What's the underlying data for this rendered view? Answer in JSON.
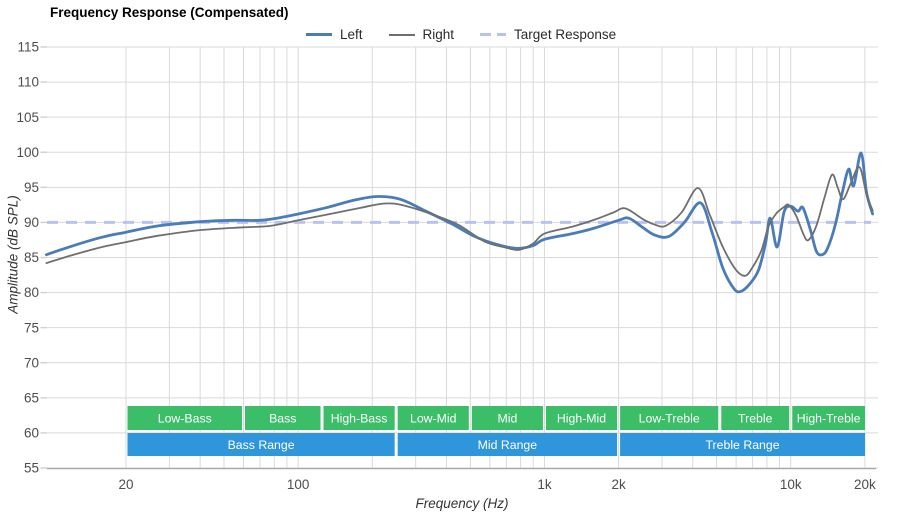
{
  "title": "Frequency Response (Compensated)",
  "legend": {
    "items": [
      {
        "label": "Left",
        "style": "solid",
        "color": "#4a7cba",
        "thickness": 3
      },
      {
        "label": "Right",
        "style": "solid",
        "color": "#6f6f6f",
        "thickness": 2
      },
      {
        "label": "Target Response",
        "style": "dashed",
        "color": "#b9c2f0",
        "thickness": 3
      }
    ]
  },
  "colors": {
    "left": "#4a7cba",
    "right": "#6f6f6f",
    "target": "#b9c2f0",
    "band_green": "#3cbd68",
    "band_blue": "#2f96db",
    "grid": "#d9d9d9",
    "axis": "#a9a9a9",
    "tick_text": "#4d4d4d",
    "band_text": "#ffffff"
  },
  "chart_data": {
    "type": "line",
    "title": "Frequency Response (Compensated)",
    "xlabel": "Frequency (Hz)",
    "ylabel": "Amplitude (dB SPL)",
    "x_scale": "log",
    "xlim_hz": [
      9.5,
      21500
    ],
    "ylim_db": [
      55,
      115
    ],
    "grid": true,
    "legend_position": "top",
    "target_db": 90,
    "y_ticks": [
      55,
      60,
      65,
      70,
      75,
      80,
      85,
      90,
      95,
      100,
      105,
      110,
      115
    ],
    "x_ticks": [
      {
        "f": 20,
        "label": "20"
      },
      {
        "f": 100,
        "label": "100"
      },
      {
        "f": 1000,
        "label": "1k"
      },
      {
        "f": 2000,
        "label": "2k"
      },
      {
        "f": 10000,
        "label": "10k"
      },
      {
        "f": 20000,
        "label": "20k"
      }
    ],
    "x_gridlines_hz": [
      20,
      30,
      40,
      50,
      60,
      70,
      80,
      90,
      100,
      200,
      300,
      400,
      500,
      600,
      700,
      800,
      900,
      1000,
      2000,
      3000,
      4000,
      5000,
      6000,
      7000,
      8000,
      9000,
      10000,
      20000
    ],
    "series": [
      {
        "name": "Left",
        "color_key": "left",
        "width": 2.8,
        "points": [
          [
            9.5,
            85.4
          ],
          [
            12,
            86.6
          ],
          [
            16,
            87.9
          ],
          [
            20,
            88.6
          ],
          [
            27,
            89.5
          ],
          [
            40,
            90.1
          ],
          [
            55,
            90.3
          ],
          [
            70,
            90.3
          ],
          [
            85,
            90.7
          ],
          [
            100,
            91.2
          ],
          [
            130,
            92.1
          ],
          [
            170,
            93.2
          ],
          [
            210,
            93.7
          ],
          [
            260,
            93.3
          ],
          [
            330,
            91.6
          ],
          [
            420,
            89.8
          ],
          [
            520,
            88.0
          ],
          [
            650,
            86.8
          ],
          [
            780,
            86.3
          ],
          [
            900,
            86.7
          ],
          [
            1000,
            87.6
          ],
          [
            1300,
            88.4
          ],
          [
            1600,
            89.2
          ],
          [
            2000,
            90.3
          ],
          [
            2200,
            90.6
          ],
          [
            2500,
            89.3
          ],
          [
            2800,
            88.2
          ],
          [
            3200,
            88.0
          ],
          [
            3700,
            90.0
          ],
          [
            4300,
            92.8
          ],
          [
            4800,
            88.5
          ],
          [
            5300,
            83.5
          ],
          [
            5900,
            80.5
          ],
          [
            6300,
            80.2
          ],
          [
            6800,
            81.2
          ],
          [
            7400,
            83.2
          ],
          [
            7900,
            87.0
          ],
          [
            8250,
            90.6
          ],
          [
            8800,
            86.5
          ],
          [
            9400,
            91.5
          ],
          [
            10000,
            92.3
          ],
          [
            10700,
            91.6
          ],
          [
            11200,
            92.1
          ],
          [
            12000,
            89.0
          ],
          [
            12700,
            85.9
          ],
          [
            13400,
            85.4
          ],
          [
            14100,
            86.3
          ],
          [
            15200,
            89.8
          ],
          [
            16200,
            94.3
          ],
          [
            17200,
            97.6
          ],
          [
            18000,
            95.2
          ],
          [
            19300,
            99.9
          ],
          [
            20300,
            94.3
          ],
          [
            21500,
            91.2
          ]
        ]
      },
      {
        "name": "Right",
        "color_key": "right",
        "width": 1.8,
        "points": [
          [
            9.5,
            84.2
          ],
          [
            12,
            85.3
          ],
          [
            16,
            86.5
          ],
          [
            20,
            87.2
          ],
          [
            27,
            88.1
          ],
          [
            40,
            88.9
          ],
          [
            60,
            89.3
          ],
          [
            77,
            89.5
          ],
          [
            100,
            90.3
          ],
          [
            130,
            91.1
          ],
          [
            180,
            92.1
          ],
          [
            225,
            92.7
          ],
          [
            270,
            92.4
          ],
          [
            360,
            91.0
          ],
          [
            450,
            89.6
          ],
          [
            570,
            87.3
          ],
          [
            700,
            86.4
          ],
          [
            790,
            86.1
          ],
          [
            900,
            87.0
          ],
          [
            1000,
            88.4
          ],
          [
            1300,
            89.4
          ],
          [
            1600,
            90.4
          ],
          [
            1900,
            91.4
          ],
          [
            2130,
            92.0
          ],
          [
            2500,
            90.5
          ],
          [
            2800,
            89.7
          ],
          [
            3100,
            89.5
          ],
          [
            3600,
            91.4
          ],
          [
            4200,
            94.9
          ],
          [
            4700,
            91.0
          ],
          [
            5300,
            86.5
          ],
          [
            6000,
            83.2
          ],
          [
            6550,
            82.4
          ],
          [
            7050,
            83.8
          ],
          [
            7600,
            86.0
          ],
          [
            8100,
            89.3
          ],
          [
            8700,
            91.2
          ],
          [
            9400,
            92.2
          ],
          [
            9800,
            92.5
          ],
          [
            10500,
            91.0
          ],
          [
            11300,
            88.2
          ],
          [
            11800,
            87.5
          ],
          [
            12700,
            89.5
          ],
          [
            13700,
            93.5
          ],
          [
            14700,
            96.8
          ],
          [
            15500,
            95.0
          ],
          [
            16300,
            93.3
          ],
          [
            17500,
            95.5
          ],
          [
            19000,
            97.9
          ],
          [
            20300,
            94.0
          ],
          [
            21500,
            91.7
          ]
        ]
      }
    ],
    "bands": {
      "rows": [
        {
          "name": "sub-bands",
          "y": 406,
          "height": 24,
          "color_key": "band_green",
          "segments": [
            {
              "label": "Low-Bass",
              "from": 20,
              "to": 60
            },
            {
              "label": "Bass",
              "from": 60,
              "to": 125
            },
            {
              "label": "High-Bass",
              "from": 125,
              "to": 250
            },
            {
              "label": "Low-Mid",
              "from": 250,
              "to": 500
            },
            {
              "label": "Mid",
              "from": 500,
              "to": 1000
            },
            {
              "label": "High-Mid",
              "from": 1000,
              "to": 2000
            },
            {
              "label": "Low-Treble",
              "from": 2000,
              "to": 5150
            },
            {
              "label": "Treble",
              "from": 5150,
              "to": 10000
            },
            {
              "label": "High-Treble",
              "from": 10000,
              "to": 20300
            }
          ]
        },
        {
          "name": "ranges",
          "y": 433,
          "height": 23,
          "color_key": "band_blue",
          "segments": [
            {
              "label": "Bass Range",
              "from": 20,
              "to": 250
            },
            {
              "label": "Mid Range",
              "from": 250,
              "to": 2000
            },
            {
              "label": "Treble Range",
              "from": 2000,
              "to": 20300
            }
          ]
        }
      ]
    }
  }
}
